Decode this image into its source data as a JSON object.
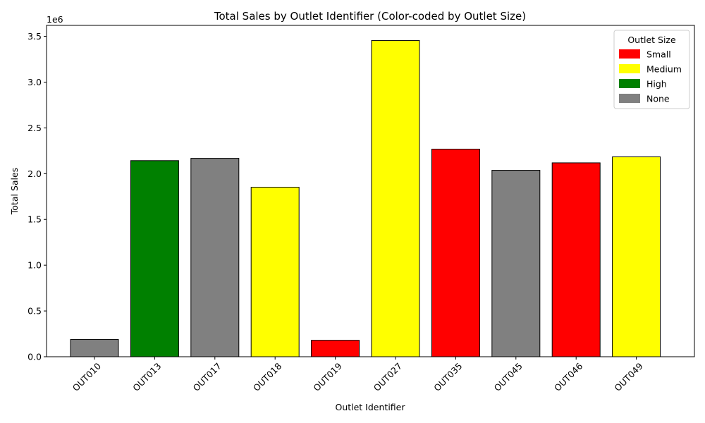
{
  "chart_data": {
    "type": "bar",
    "title": "Total Sales by Outlet Identifier (Color-coded by Outlet Size)",
    "xlabel": "Outlet Identifier",
    "ylabel": "Total Sales",
    "y_offset_label": "1e6",
    "y_scale": 1000000,
    "ylim": [
      0,
      3.62
    ],
    "y_ticks": [
      0.0,
      0.5,
      1.0,
      1.5,
      2.0,
      2.5,
      3.0,
      3.5
    ],
    "y_tick_labels": [
      "0.0",
      "0.5",
      "1.0",
      "1.5",
      "2.0",
      "2.5",
      "3.0",
      "3.5"
    ],
    "grid": false,
    "categories": [
      "OUT010",
      "OUT013",
      "OUT017",
      "OUT018",
      "OUT019",
      "OUT027",
      "OUT035",
      "OUT045",
      "OUT046",
      "OUT049"
    ],
    "values": [
      188340,
      2142664,
      2167465,
      1851823,
      179694,
      3453926,
      2268123,
      2036725,
      2118395,
      2183970
    ],
    "outlet_size": [
      "None",
      "High",
      "None",
      "Medium",
      "Small",
      "Medium",
      "Small",
      "None",
      "Small",
      "Medium"
    ],
    "legend": {
      "title": "Outlet Size",
      "placement": "top-right",
      "entries": [
        {
          "label": "Small",
          "color": "#ff0000"
        },
        {
          "label": "Medium",
          "color": "#ffff00"
        },
        {
          "label": "High",
          "color": "#008000"
        },
        {
          "label": "None",
          "color": "#808080"
        }
      ]
    },
    "edge_color": "#000000"
  }
}
